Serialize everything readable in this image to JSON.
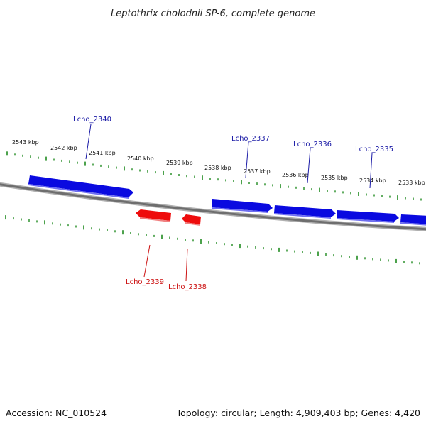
{
  "title": "Leptothrix cholodnii SP-6, complete genome",
  "footer": {
    "accession": "Accession: NC_010524",
    "summary": "Topology: circular; Length: 4,909,403 bp; Genes: 4,420"
  },
  "colors": {
    "forward_gene": "#0a0ae0",
    "reverse_gene": "#ee0c0c",
    "backbone": "#7a7a7a",
    "ticks": "#1f8a1f",
    "label_blue": "#1a1aa6",
    "label_red": "#cc1111"
  },
  "scale_labels": [
    "2543 kbp",
    "2542 kbp",
    "2541 kbp",
    "2540 kbp",
    "2539 kbp",
    "2538 kbp",
    "2537 kbp",
    "2536 kbp",
    "2535 kbp",
    "2534 kbp",
    "2533 kbp"
  ],
  "genes": [
    {
      "id": "Lcho_2340",
      "strand": "forward"
    },
    {
      "id": "Lcho_2339",
      "strand": "reverse"
    },
    {
      "id": "Lcho_2338",
      "strand": "reverse"
    },
    {
      "id": "Lcho_2337",
      "strand": "forward"
    },
    {
      "id": "Lcho_2336",
      "strand": "forward"
    },
    {
      "id": "Lcho_2335",
      "strand": "forward"
    }
  ]
}
